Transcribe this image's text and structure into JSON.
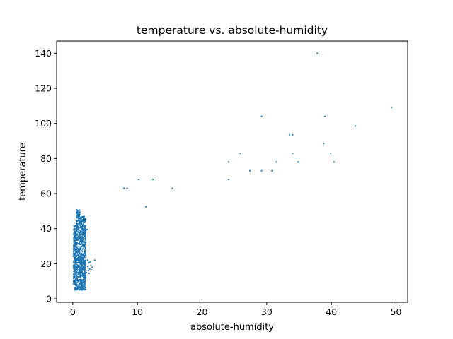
{
  "chart_data": {
    "type": "scatter",
    "title": "temperature vs. absolute-humidity",
    "xlabel": "absolute-humidity",
    "ylabel": "temperature",
    "xlim": [
      -2.5,
      51.8
    ],
    "ylim": [
      -2.0,
      147.0
    ],
    "xticks": [
      0,
      10,
      20,
      30,
      40,
      50
    ],
    "yticks": [
      0,
      20,
      40,
      60,
      80,
      100,
      120,
      140
    ],
    "grid": false,
    "legend": "none",
    "marker_color": "#1f77b4",
    "dense_cluster": {
      "x_range": [
        0.1,
        2.0
      ],
      "y_range": [
        5,
        51
      ],
      "note_points": 900
    },
    "points": [
      [
        2.2,
        39.5
      ],
      [
        2.0,
        25.0
      ],
      [
        2.3,
        22.0
      ],
      [
        2.5,
        20.5
      ],
      [
        2.8,
        19.0
      ],
      [
        3.0,
        18.0
      ],
      [
        2.6,
        17.0
      ],
      [
        2.4,
        16.0
      ],
      [
        2.1,
        15.0
      ],
      [
        1.9,
        14.0
      ],
      [
        2.0,
        13.0
      ],
      [
        1.7,
        12.0
      ],
      [
        1.6,
        11.0
      ],
      [
        2.7,
        21.0
      ],
      [
        3.4,
        22.0
      ],
      [
        2.9,
        16.5
      ],
      [
        2.3,
        18.5
      ],
      [
        2.5,
        14.5
      ],
      [
        7.9,
        63.0
      ],
      [
        8.4,
        63.0
      ],
      [
        10.2,
        68.0
      ],
      [
        11.3,
        52.5
      ],
      [
        12.4,
        68.0
      ],
      [
        15.4,
        63.0
      ],
      [
        24.1,
        78.0
      ],
      [
        24.1,
        68.0
      ],
      [
        25.9,
        83.0
      ],
      [
        27.4,
        73.0
      ],
      [
        29.2,
        104.0
      ],
      [
        29.2,
        73.0
      ],
      [
        30.8,
        73.0
      ],
      [
        31.5,
        78.0
      ],
      [
        33.5,
        93.5
      ],
      [
        34.0,
        93.5
      ],
      [
        34.0,
        83.0
      ],
      [
        34.8,
        78.0
      ],
      [
        34.9,
        78.0
      ],
      [
        37.8,
        140.0
      ],
      [
        38.8,
        88.5
      ],
      [
        39.0,
        104.0
      ],
      [
        39.9,
        83.0
      ],
      [
        40.4,
        78.0
      ],
      [
        43.7,
        98.5
      ],
      [
        49.3,
        109.0
      ]
    ]
  }
}
